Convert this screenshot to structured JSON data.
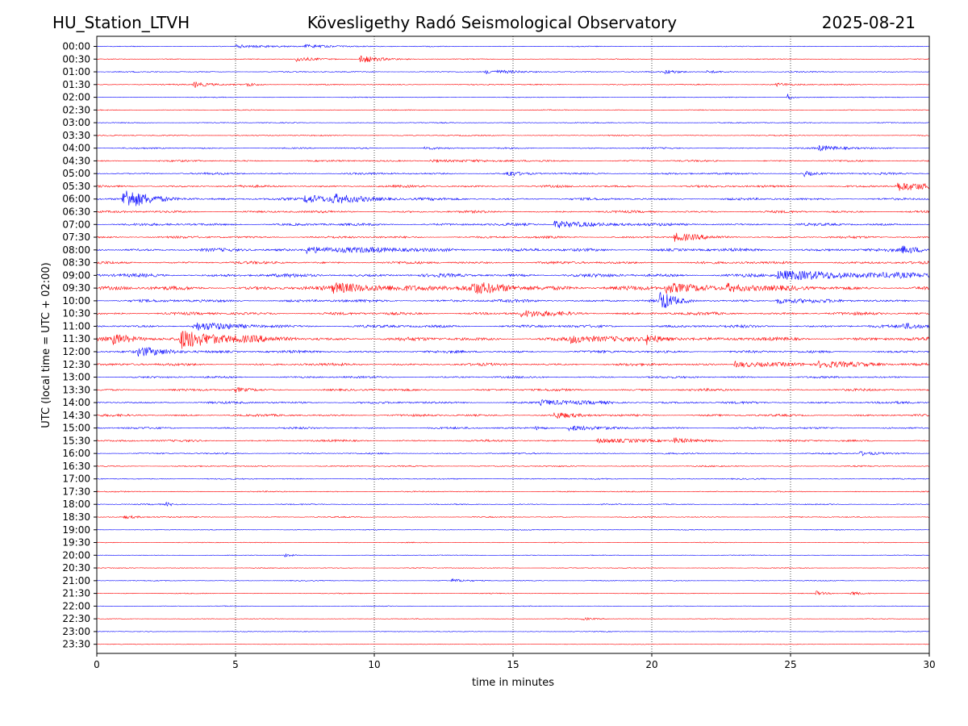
{
  "header": {
    "station": "HU_Station_LTVH",
    "title": "Kövesligethy Radó Seismological Observatory",
    "date": "2025-08-21"
  },
  "chart_data": {
    "type": "line",
    "subtype": "helicorder",
    "xlabel": "time in minutes",
    "ylabel": "UTC (local time = UTC + 02:00)",
    "xlim": [
      0,
      30
    ],
    "x_ticks": [
      0,
      5,
      10,
      15,
      20,
      25,
      30
    ],
    "x_tick_labels": [
      "0",
      "5",
      "10",
      "15",
      "20",
      "25",
      "30"
    ],
    "grid": "vertical dotted lines at x ticks",
    "colors": {
      "even_rows": "#0000ff",
      "odd_rows": "#ff0000"
    },
    "row_labels": [
      "00:00",
      "00:30",
      "01:00",
      "01:30",
      "02:00",
      "02:30",
      "03:00",
      "03:30",
      "04:00",
      "04:30",
      "05:00",
      "05:30",
      "06:00",
      "06:30",
      "07:00",
      "07:30",
      "08:00",
      "08:30",
      "09:00",
      "09:30",
      "10:00",
      "10:30",
      "11:00",
      "11:30",
      "12:00",
      "12:30",
      "13:00",
      "13:30",
      "14:00",
      "14:30",
      "15:00",
      "15:30",
      "16:00",
      "16:30",
      "17:00",
      "17:30",
      "18:00",
      "18:30",
      "19:00",
      "19:30",
      "20:00",
      "20:30",
      "21:00",
      "21:30",
      "22:00",
      "22:30",
      "23:00",
      "23:30"
    ],
    "noise_level": [
      0.6,
      0.6,
      0.8,
      0.8,
      0.6,
      0.6,
      0.7,
      0.8,
      1.0,
      1.2,
      1.4,
      1.6,
      1.6,
      1.6,
      1.8,
      1.6,
      2.2,
      1.8,
      2.4,
      2.8,
      2.0,
      2.0,
      2.0,
      2.6,
      1.8,
      1.8,
      1.4,
      1.6,
      1.6,
      1.6,
      1.4,
      1.4,
      1.0,
      0.9,
      0.8,
      0.8,
      0.8,
      0.8,
      0.6,
      0.6,
      0.5,
      0.6,
      0.6,
      0.6,
      0.5,
      0.5,
      0.5,
      0.4
    ],
    "events": [
      {
        "row": 0,
        "t": 5.0,
        "amp": 2.0,
        "dur": 1.2
      },
      {
        "row": 0,
        "t": 7.5,
        "amp": 2.0,
        "dur": 1.2
      },
      {
        "row": 1,
        "t": 7.2,
        "amp": 3.0,
        "dur": 0.6
      },
      {
        "row": 1,
        "t": 9.5,
        "amp": 6.0,
        "dur": 0.6
      },
      {
        "row": 2,
        "t": 14.0,
        "amp": 2.0,
        "dur": 1.4
      },
      {
        "row": 2,
        "t": 20.5,
        "amp": 2.5,
        "dur": 0.5
      },
      {
        "row": 2,
        "t": 22.0,
        "amp": 2.0,
        "dur": 0.5
      },
      {
        "row": 3,
        "t": 3.5,
        "amp": 3.5,
        "dur": 0.6
      },
      {
        "row": 3,
        "t": 5.4,
        "amp": 3.0,
        "dur": 0.3
      },
      {
        "row": 3,
        "t": 24.5,
        "amp": 2.0,
        "dur": 0.6
      },
      {
        "row": 4,
        "t": 24.9,
        "amp": 4.0,
        "dur": 0.15
      },
      {
        "row": 8,
        "t": 11.8,
        "amp": 2.0,
        "dur": 0.4
      },
      {
        "row": 8,
        "t": 26.0,
        "amp": 3.0,
        "dur": 1.0
      },
      {
        "row": 9,
        "t": 12.0,
        "amp": 1.8,
        "dur": 1.5
      },
      {
        "row": 10,
        "t": 14.8,
        "amp": 4.0,
        "dur": 0.3
      },
      {
        "row": 10,
        "t": 25.5,
        "amp": 3.0,
        "dur": 0.3
      },
      {
        "row": 11,
        "t": 28.8,
        "amp": 5.5,
        "dur": 1.2
      },
      {
        "row": 12,
        "t": 0.95,
        "amp": 13.0,
        "dur": 0.9
      },
      {
        "row": 12,
        "t": 7.5,
        "amp": 5.0,
        "dur": 1.6
      },
      {
        "row": 12,
        "t": 8.5,
        "amp": 4.5,
        "dur": 0.8
      },
      {
        "row": 14,
        "t": 16.5,
        "amp": 5.0,
        "dur": 1.2
      },
      {
        "row": 15,
        "t": 20.8,
        "amp": 5.0,
        "dur": 0.8
      },
      {
        "row": 16,
        "t": 7.5,
        "amp": 4.0,
        "dur": 2.5
      },
      {
        "row": 16,
        "t": 29.0,
        "amp": 4.0,
        "dur": 1.0
      },
      {
        "row": 18,
        "t": 24.5,
        "amp": 5.0,
        "dur": 4.5
      },
      {
        "row": 19,
        "t": 8.5,
        "amp": 5.0,
        "dur": 3.0
      },
      {
        "row": 19,
        "t": 13.5,
        "amp": 5.0,
        "dur": 1.4
      },
      {
        "row": 19,
        "t": 20.5,
        "amp": 6.5,
        "dur": 1.2
      },
      {
        "row": 19,
        "t": 22.7,
        "amp": 5.0,
        "dur": 1.0
      },
      {
        "row": 20,
        "t": 20.3,
        "amp": 13.0,
        "dur": 0.4
      },
      {
        "row": 20,
        "t": 24.5,
        "amp": 3.5,
        "dur": 0.8
      },
      {
        "row": 21,
        "t": 15.3,
        "amp": 4.0,
        "dur": 1.0
      },
      {
        "row": 22,
        "t": 3.5,
        "amp": 5.0,
        "dur": 1.2
      },
      {
        "row": 22,
        "t": 29.0,
        "amp": 3.0,
        "dur": 1.0
      },
      {
        "row": 23,
        "t": 0.6,
        "amp": 5.0,
        "dur": 0.8
      },
      {
        "row": 23,
        "t": 3.0,
        "amp": 12.0,
        "dur": 1.5
      },
      {
        "row": 23,
        "t": 17.0,
        "amp": 4.0,
        "dur": 1.5
      },
      {
        "row": 23,
        "t": 19.8,
        "amp": 6.0,
        "dur": 0.6
      },
      {
        "row": 24,
        "t": 1.5,
        "amp": 5.0,
        "dur": 1.2
      },
      {
        "row": 25,
        "t": 23.0,
        "amp": 4.0,
        "dur": 1.2
      },
      {
        "row": 25,
        "t": 26.0,
        "amp": 3.5,
        "dur": 2.0
      },
      {
        "row": 27,
        "t": 5.0,
        "amp": 2.5,
        "dur": 0.4
      },
      {
        "row": 28,
        "t": 16.0,
        "amp": 3.0,
        "dur": 1.5
      },
      {
        "row": 29,
        "t": 16.5,
        "amp": 4.0,
        "dur": 0.6
      },
      {
        "row": 30,
        "t": 17.0,
        "amp": 3.5,
        "dur": 0.8
      },
      {
        "row": 30,
        "t": 15.8,
        "amp": 2.0,
        "dur": 0.5
      },
      {
        "row": 31,
        "t": 18.0,
        "amp": 3.0,
        "dur": 1.2
      },
      {
        "row": 31,
        "t": 20.8,
        "amp": 3.5,
        "dur": 0.6
      },
      {
        "row": 32,
        "t": 27.5,
        "amp": 2.5,
        "dur": 0.6
      },
      {
        "row": 36,
        "t": 2.5,
        "amp": 2.0,
        "dur": 0.3
      },
      {
        "row": 37,
        "t": 1.0,
        "amp": 1.8,
        "dur": 0.6
      },
      {
        "row": 40,
        "t": 6.8,
        "amp": 3.5,
        "dur": 0.15
      },
      {
        "row": 42,
        "t": 12.8,
        "amp": 2.0,
        "dur": 0.5
      },
      {
        "row": 43,
        "t": 25.9,
        "amp": 3.0,
        "dur": 0.3
      },
      {
        "row": 43,
        "t": 27.2,
        "amp": 2.5,
        "dur": 0.3
      },
      {
        "row": 45,
        "t": 17.5,
        "amp": 1.5,
        "dur": 0.6
      }
    ]
  }
}
